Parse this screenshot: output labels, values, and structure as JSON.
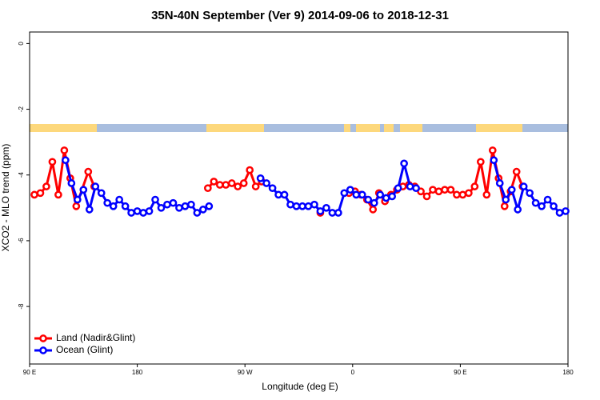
{
  "chart_data": {
    "type": "line",
    "title": "35N-40N September (Ver 9)   2014-09-06 to 2018-12-31",
    "x_label": "Longitude (deg E)",
    "y_label": "XCO2 - MLO trend (ppm)",
    "xlim": [
      90,
      540
    ],
    "xticks": [
      {
        "value": 90,
        "label": "90 E"
      },
      180,
      {
        "value": 270,
        "label": "90 W"
      },
      {
        "value": 360,
        "label": "0"
      },
      {
        "value": 450,
        "label": "90 E"
      },
      {
        "value": 540,
        "label": "180"
      }
    ],
    "ylim": [
      -9.75,
      0.35
    ],
    "yticks": [
      0,
      -2,
      -4,
      -6,
      -8
    ],
    "legend": "bottom-left",
    "series": [
      {
        "name": "Land (Nadir&Glint)",
        "color": "#ff0000",
        "x": [
          94,
          99,
          104,
          109,
          114,
          119,
          124,
          129,
          139,
          144,
          null,
          239,
          244,
          249,
          254,
          259,
          264,
          269,
          274,
          279,
          284,
          null,
          333,
          null,
          357,
          362,
          367,
          372,
          377,
          382,
          387,
          392,
          397,
          402,
          407,
          412,
          417,
          422,
          427,
          432,
          437,
          442,
          447,
          452,
          457,
          462,
          467,
          472,
          477,
          482,
          487,
          492,
          497,
          502
        ],
        "values": [
          -4.6,
          -4.55,
          -4.35,
          -3.6,
          -4.6,
          -3.25,
          -4.1,
          -4.95,
          -3.9,
          -4.35,
          null,
          -4.4,
          -4.2,
          -4.3,
          -4.3,
          -4.25,
          -4.35,
          -4.25,
          -3.85,
          -4.35,
          -4.2,
          null,
          -5.15,
          null,
          -4.55,
          -4.5,
          -4.6,
          -4.75,
          -5.05,
          -4.55,
          -4.8,
          -4.6,
          -4.45,
          -4.35,
          -4.3,
          -4.35,
          -4.5,
          -4.65,
          -4.45,
          -4.5,
          -4.45,
          -4.45,
          -4.6,
          -4.6,
          -4.55,
          -4.35,
          -3.6,
          -4.6,
          -3.25,
          -4.1,
          -4.95,
          -4.5,
          -3.9,
          -4.35
        ]
      },
      {
        "name": "Ocean (Glint)",
        "color": "#0000ff",
        "x": [
          120,
          125,
          130,
          135,
          140,
          145,
          150,
          155,
          160,
          165,
          170,
          175,
          180,
          185,
          190,
          195,
          200,
          205,
          210,
          215,
          220,
          225,
          230,
          235,
          240,
          null,
          283,
          288,
          293,
          298,
          303,
          308,
          313,
          318,
          323,
          328,
          333,
          338,
          343,
          348,
          353,
          358,
          363,
          368,
          373,
          378,
          383,
          388,
          393,
          398,
          403,
          408,
          413,
          null,
          478,
          483,
          488,
          493,
          498,
          503,
          508,
          513,
          518,
          523,
          528,
          533,
          538
        ],
        "values": [
          -3.55,
          -4.25,
          -4.75,
          -4.45,
          -5.05,
          -4.35,
          -4.55,
          -4.85,
          -4.95,
          -4.75,
          -4.95,
          -5.15,
          -5.1,
          -5.15,
          -5.1,
          -4.75,
          -5.0,
          -4.9,
          -4.85,
          -5.0,
          -4.95,
          -4.9,
          -5.15,
          -5.05,
          -4.95,
          null,
          -4.1,
          -4.25,
          -4.4,
          -4.6,
          -4.6,
          -4.9,
          -4.95,
          -4.95,
          -4.95,
          -4.9,
          -5.1,
          -5.0,
          -5.15,
          -5.15,
          -4.55,
          -4.45,
          -4.6,
          -4.6,
          -4.75,
          -4.85,
          -4.6,
          -4.7,
          -4.65,
          -4.4,
          -3.65,
          -4.35,
          -4.4,
          null,
          -3.55,
          -4.25,
          -4.75,
          -4.45,
          -5.05,
          -4.35,
          -4.55,
          -4.85,
          -4.95,
          -4.75,
          -4.95,
          -5.15,
          -5.1
        ]
      }
    ]
  }
}
